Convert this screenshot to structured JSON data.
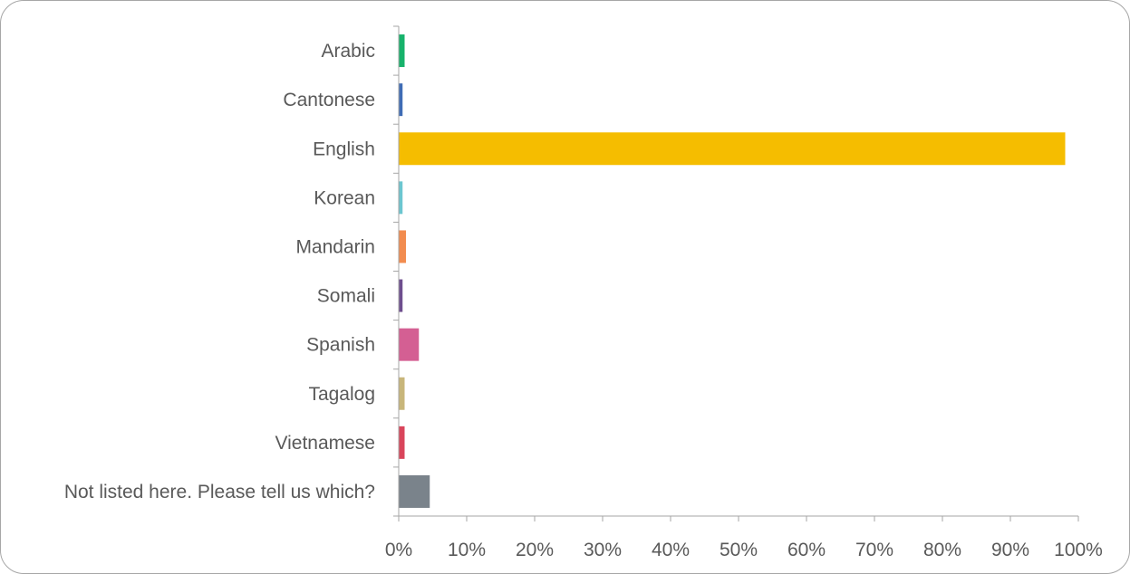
{
  "chart_data": {
    "type": "bar",
    "orientation": "horizontal",
    "categories": [
      "Arabic",
      "Cantonese",
      "English",
      "Korean",
      "Mandarin",
      "Somali",
      "Spanish",
      "Tagalog",
      "Vietnamese",
      "Not listed here. Please tell us which?"
    ],
    "values": [
      0.8,
      0.5,
      98.0,
      0.5,
      1.0,
      0.5,
      2.9,
      0.8,
      0.8,
      4.5
    ],
    "colors": [
      "#17b26b",
      "#3f6cb5",
      "#f5bd00",
      "#6cc6d0",
      "#f28c4f",
      "#6e4e8e",
      "#d45f93",
      "#c8b67a",
      "#d9455b",
      "#7a838b"
    ],
    "xlim": [
      0,
      100
    ],
    "xticks": [
      "0%",
      "10%",
      "20%",
      "30%",
      "40%",
      "50%",
      "60%",
      "70%",
      "80%",
      "90%",
      "100%"
    ],
    "grid": false,
    "legend": "none"
  }
}
